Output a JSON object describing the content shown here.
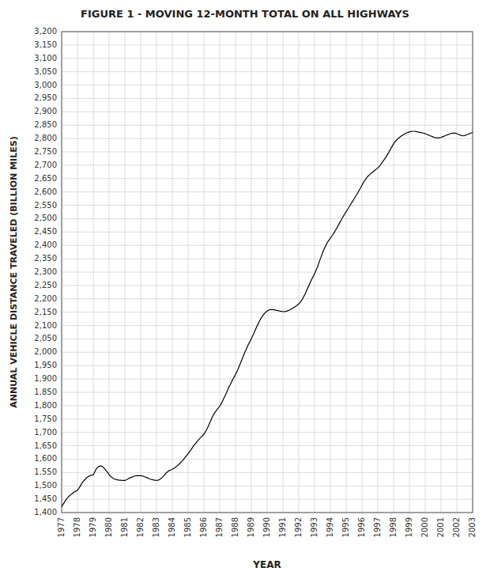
{
  "chart_data": {
    "type": "line",
    "title": "FIGURE 1 - MOVING 12-MONTH TOTAL ON ALL HIGHWAYS",
    "x_label": "YEAR",
    "y_label": "ANNUAL VEHICLE DISTANCE TRAVELED (BILLION MILES)",
    "color": "#000000",
    "grid": true,
    "xlim": [
      1977,
      2003
    ],
    "xticks": [
      1977,
      1978,
      1979,
      1980,
      1981,
      1982,
      1983,
      1984,
      1985,
      1986,
      1987,
      1988,
      1989,
      1990,
      1991,
      1992,
      1993,
      1994,
      1995,
      1996,
      1997,
      1998,
      1999,
      2000,
      2001,
      2002,
      2003
    ],
    "ylim": [
      1400,
      3200
    ],
    "yticks": [
      {
        "value": 1400,
        "label": "1,400"
      },
      {
        "value": 1450,
        "label": "1,450"
      },
      {
        "value": 1500,
        "label": "1,500"
      },
      {
        "value": 1550,
        "label": "1,550"
      },
      {
        "value": 1600,
        "label": "1,600"
      },
      {
        "value": 1650,
        "label": "1,650"
      },
      {
        "value": 1700,
        "label": "1,700"
      },
      {
        "value": 1750,
        "label": "1,750"
      },
      {
        "value": 1800,
        "label": "1,800"
      },
      {
        "value": 1850,
        "label": "1,850"
      },
      {
        "value": 1900,
        "label": "1,900"
      },
      {
        "value": 1950,
        "label": "1,950"
      },
      {
        "value": 2000,
        "label": "2,000"
      },
      {
        "value": 2050,
        "label": "2,050"
      },
      {
        "value": 2100,
        "label": "2,100"
      },
      {
        "value": 2150,
        "label": "2,150"
      },
      {
        "value": 2200,
        "label": "2,200"
      },
      {
        "value": 2250,
        "label": "2,250"
      },
      {
        "value": 2300,
        "label": "2,300"
      },
      {
        "value": 2350,
        "label": "2,350"
      },
      {
        "value": 2400,
        "label": "2,400"
      },
      {
        "value": 2450,
        "label": "2,450"
      },
      {
        "value": 2500,
        "label": "2,500"
      },
      {
        "value": 2550,
        "label": "2,550"
      },
      {
        "value": 2600,
        "label": "2,600"
      },
      {
        "value": 2650,
        "label": "2,650"
      },
      {
        "value": 2700,
        "label": "2,700"
      },
      {
        "value": 2750,
        "label": "2,750"
      },
      {
        "value": 2800,
        "label": "2,800"
      },
      {
        "value": 2850,
        "label": "2,850"
      },
      {
        "value": 2900,
        "label": "2,900"
      },
      {
        "value": 2950,
        "label": "2,950"
      },
      {
        "value": 3000,
        "label": "3,000"
      },
      {
        "value": 3050,
        "label": "3,050"
      },
      {
        "value": 3100,
        "label": "3,100"
      },
      {
        "value": 3150,
        "label": "3,150"
      },
      {
        "value": 3200,
        "label": "3,200"
      }
    ],
    "x": [
      1977.0,
      1977.08,
      1977.17,
      1977.25,
      1977.33,
      1977.42,
      1977.5,
      1977.58,
      1977.67,
      1977.75,
      1977.83,
      1977.92,
      1978.0,
      1978.08,
      1978.17,
      1978.25,
      1978.33,
      1978.42,
      1978.5,
      1978.58,
      1978.67,
      1978.75,
      1978.83,
      1978.92,
      1979.0,
      1979.08,
      1979.17,
      1979.25,
      1979.33,
      1979.42,
      1979.5,
      1979.58,
      1979.67,
      1979.75,
      1979.83,
      1979.92,
      1980.0,
      1980.08,
      1980.17,
      1980.25,
      1980.33,
      1980.42,
      1980.5,
      1980.58,
      1980.67,
      1980.75,
      1980.83,
      1980.92,
      1981.0,
      1981.08,
      1981.17,
      1981.25,
      1981.33,
      1981.42,
      1981.5,
      1981.58,
      1981.67,
      1981.75,
      1981.83,
      1981.92,
      1982.0,
      1982.08,
      1982.17,
      1982.25,
      1982.33,
      1982.42,
      1982.5,
      1982.58,
      1982.67,
      1982.75,
      1982.83,
      1982.92,
      1983.0,
      1983.08,
      1983.17,
      1983.25,
      1983.33,
      1983.42,
      1983.5,
      1983.58,
      1983.67,
      1983.75,
      1983.83,
      1983.92,
      1984.0,
      1984.08,
      1984.17,
      1984.25,
      1984.33,
      1984.42,
      1984.5,
      1984.58,
      1984.67,
      1984.75,
      1984.83,
      1984.92,
      1985.0,
      1985.08,
      1985.17,
      1985.25,
      1985.33,
      1985.42,
      1985.5,
      1985.58,
      1985.67,
      1985.75,
      1985.83,
      1985.92,
      1986.0,
      1986.08,
      1986.17,
      1986.25,
      1986.33,
      1986.42,
      1986.5,
      1986.58,
      1986.67,
      1986.75,
      1986.83,
      1986.92,
      1987.0,
      1987.08,
      1987.17,
      1987.25,
      1987.33,
      1987.42,
      1987.5,
      1987.58,
      1987.67,
      1987.75,
      1987.83,
      1987.92,
      1988.0,
      1988.08,
      1988.17,
      1988.25,
      1988.33,
      1988.42,
      1988.5,
      1988.58,
      1988.67,
      1988.75,
      1988.83,
      1988.92,
      1989.0,
      1989.08,
      1989.17,
      1989.25,
      1989.33,
      1989.42,
      1989.5,
      1989.58,
      1989.67,
      1989.75,
      1989.83,
      1989.92,
      1990.0,
      1990.08,
      1990.17,
      1990.25,
      1990.33,
      1990.42,
      1990.5,
      1990.58,
      1990.67,
      1990.75,
      1990.83,
      1990.92,
      1991.0,
      1991.08,
      1991.17,
      1991.25,
      1991.33,
      1991.42,
      1991.5,
      1991.58,
      1991.67,
      1991.75,
      1991.83,
      1991.92,
      1992.0,
      1992.08,
      1992.17,
      1992.25,
      1992.33,
      1992.42,
      1992.5,
      1992.58,
      1992.67,
      1992.75,
      1992.83,
      1992.92,
      1993.0,
      1993.08,
      1993.17,
      1993.25,
      1993.33,
      1993.42,
      1993.5,
      1993.58,
      1993.67,
      1993.75,
      1993.83,
      1993.92,
      1994.0,
      1994.08,
      1994.17,
      1994.25,
      1994.33,
      1994.42,
      1994.5,
      1994.58,
      1994.67,
      1994.75,
      1994.83,
      1994.92,
      1995.0,
      1995.08,
      1995.17,
      1995.25,
      1995.33,
      1995.42,
      1995.5,
      1995.58,
      1995.67,
      1995.75,
      1995.83,
      1995.92,
      1996.0,
      1996.08,
      1996.17,
      1996.25,
      1996.33,
      1996.42,
      1996.5,
      1996.58,
      1996.67,
      1996.75,
      1996.83,
      1996.92,
      1997.0,
      1997.08,
      1997.17,
      1997.25,
      1997.33,
      1997.42,
      1997.5,
      1997.58,
      1997.67,
      1997.75,
      1997.83,
      1997.92,
      1998.0,
      1998.08,
      1998.17,
      1998.25,
      1998.33,
      1998.42,
      1998.5,
      1998.58,
      1998.67,
      1998.75,
      1998.83,
      1998.92,
      1999.0,
      1999.08,
      1999.17,
      1999.25,
      1999.33,
      1999.42,
      1999.5,
      1999.58,
      1999.67,
      1999.75,
      1999.83,
      1999.92,
      2000.0,
      2000.08,
      2000.17,
      2000.25,
      2000.33,
      2000.42,
      2000.5,
      2000.58,
      2000.67,
      2000.75,
      2000.83,
      2000.92,
      2001.0,
      2001.08,
      2001.17,
      2001.25,
      2001.33,
      2001.42,
      2001.5,
      2001.58,
      2001.67,
      2001.75,
      2001.83,
      2001.92,
      2002.0,
      2002.08,
      2002.17,
      2002.25,
      2002.33,
      2002.42,
      2002.5,
      2002.58,
      2002.67,
      2002.75,
      2002.83,
      2002.92,
      2003.0
    ],
    "values": [
      1422,
      1430,
      1438,
      1446,
      1452,
      1458,
      1463,
      1467,
      1471,
      1475,
      1478,
      1481,
      1484,
      1490,
      1498,
      1507,
      1514,
      1520,
      1525,
      1530,
      1534,
      1537,
      1539,
      1540,
      1541,
      1550,
      1561,
      1568,
      1572,
      1574,
      1575,
      1572,
      1568,
      1562,
      1556,
      1549,
      1542,
      1537,
      1532,
      1528,
      1526,
      1524,
      1523,
      1522,
      1521,
      1521,
      1520,
      1520,
      1520,
      1522,
      1525,
      1528,
      1530,
      1532,
      1534,
      1536,
      1537,
      1538,
      1538,
      1538,
      1538,
      1537,
      1536,
      1534,
      1532,
      1530,
      1528,
      1526,
      1524,
      1523,
      1522,
      1521,
      1520,
      1521,
      1523,
      1526,
      1530,
      1535,
      1540,
      1546,
      1551,
      1555,
      1558,
      1560,
      1562,
      1565,
      1568,
      1572,
      1576,
      1580,
      1585,
      1590,
      1596,
      1602,
      1608,
      1614,
      1620,
      1627,
      1634,
      1641,
      1648,
      1655,
      1661,
      1667,
      1673,
      1678,
      1683,
      1688,
      1693,
      1700,
      1710,
      1720,
      1731,
      1742,
      1753,
      1763,
      1772,
      1779,
      1786,
      1792,
      1798,
      1806,
      1816,
      1826,
      1836,
      1847,
      1858,
      1869,
      1879,
      1889,
      1899,
      1908,
      1917,
      1927,
      1938,
      1950,
      1962,
      1975,
      1987,
      1999,
      2010,
      2021,
      2031,
      2041,
      2051,
      2061,
      2072,
      2083,
      2094,
      2105,
      2115,
      2124,
      2132,
      2139,
      2145,
      2150,
      2154,
      2157,
      2159,
      2160,
      2160,
      2159,
      2158,
      2157,
      2156,
      2155,
      2154,
      2153,
      2152,
      2152,
      2153,
      2154,
      2156,
      2158,
      2161,
      2164,
      2167,
      2170,
      2173,
      2177,
      2181,
      2186,
      2193,
      2201,
      2210,
      2220,
      2231,
      2242,
      2253,
      2264,
      2274,
      2284,
      2294,
      2305,
      2317,
      2330,
      2344,
      2358,
      2371,
      2383,
      2394,
      2404,
      2413,
      2420,
      2427,
      2434,
      2441,
      2449,
      2457,
      2466,
      2475,
      2484,
      2493,
      2502,
      2510,
      2518,
      2526,
      2534,
      2542,
      2550,
      2558,
      2566,
      2574,
      2582,
      2590,
      2598,
      2607,
      2616,
      2625,
      2634,
      2642,
      2649,
      2656,
      2661,
      2666,
      2670,
      2674,
      2678,
      2682,
      2686,
      2690,
      2695,
      2701,
      2708,
      2715,
      2722,
      2729,
      2737,
      2745,
      2754,
      2763,
      2772,
      2780,
      2787,
      2793,
      2798,
      2802,
      2806,
      2810,
      2813,
      2816,
      2819,
      2821,
      2823,
      2825,
      2826,
      2827,
      2827,
      2827,
      2826,
      2825,
      2824,
      2823,
      2822,
      2821,
      2820,
      2818,
      2816,
      2814,
      2812,
      2810,
      2808,
      2806,
      2804,
      2803,
      2802,
      2802,
      2803,
      2804,
      2806,
      2808,
      2810,
      2812,
      2814,
      2816,
      2818,
      2819,
      2820,
      2820,
      2820,
      2818,
      2816,
      2814,
      2812,
      2811,
      2810,
      2811,
      2813,
      2815,
      2817,
      2819,
      2821,
      2823
    ]
  }
}
